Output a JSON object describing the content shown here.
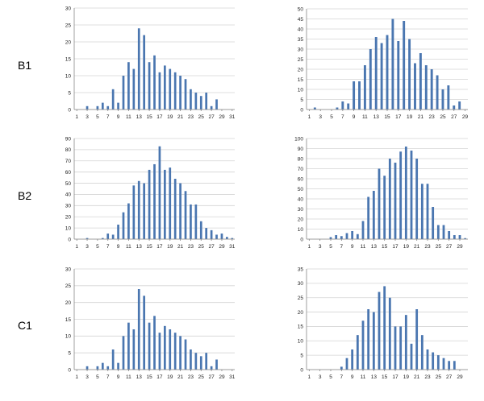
{
  "rows": [
    "B1",
    "B2",
    "C1"
  ],
  "chart_data": [
    {
      "type": "bar",
      "row": "B1",
      "ylim": [
        0,
        30
      ],
      "yticks": [
        0,
        5,
        10,
        15,
        20,
        25,
        30
      ],
      "categories": [
        1,
        2,
        3,
        4,
        5,
        6,
        7,
        8,
        9,
        10,
        11,
        12,
        13,
        14,
        15,
        16,
        17,
        18,
        19,
        20,
        21,
        22,
        23,
        24,
        25,
        26,
        27,
        28,
        29,
        30,
        31
      ],
      "xtick_labels": [
        "1",
        "3",
        "5",
        "7",
        "9",
        "11",
        "13",
        "15",
        "17",
        "19",
        "21",
        "23",
        "25",
        "27",
        "29",
        "31"
      ],
      "values": [
        0,
        0,
        1,
        0,
        1,
        2,
        1,
        6,
        2,
        10,
        14,
        12,
        24,
        22,
        14,
        16,
        11,
        13,
        12,
        11,
        10,
        9,
        6,
        5,
        4,
        5,
        1,
        3,
        0,
        0,
        0
      ],
      "color": "#4a76b0"
    },
    {
      "type": "bar",
      "row": "B1",
      "ylim": [
        0,
        50
      ],
      "yticks": [
        0,
        5,
        10,
        15,
        20,
        25,
        30,
        35,
        40,
        45,
        50
      ],
      "categories": [
        1,
        2,
        3,
        4,
        5,
        6,
        7,
        8,
        9,
        10,
        11,
        12,
        13,
        14,
        15,
        16,
        17,
        18,
        19,
        20,
        21,
        22,
        23,
        24,
        25,
        26,
        27,
        28,
        29
      ],
      "xtick_labels": [
        "1",
        "3",
        "5",
        "7",
        "9",
        "11",
        "13",
        "15",
        "17",
        "19",
        "21",
        "23",
        "25",
        "27",
        "29"
      ],
      "values": [
        0,
        1,
        0,
        0,
        0,
        1,
        4,
        3,
        14,
        14,
        22,
        30,
        36,
        33,
        37,
        45,
        34,
        44,
        35,
        23,
        28,
        22,
        20,
        17,
        10,
        12,
        2,
        4,
        0
      ],
      "color": "#4a76b0"
    },
    {
      "type": "bar",
      "row": "B2",
      "ylim": [
        0,
        90
      ],
      "yticks": [
        0,
        10,
        20,
        30,
        40,
        50,
        60,
        70,
        80,
        90
      ],
      "categories": [
        1,
        2,
        3,
        4,
        5,
        6,
        7,
        8,
        9,
        10,
        11,
        12,
        13,
        14,
        15,
        16,
        17,
        18,
        19,
        20,
        21,
        22,
        23,
        24,
        25,
        26,
        27,
        28,
        29,
        30,
        31
      ],
      "xtick_labels": [
        "1",
        "3",
        "5",
        "7",
        "9",
        "11",
        "13",
        "15",
        "17",
        "19",
        "21",
        "23",
        "25",
        "27",
        "29",
        "31"
      ],
      "values": [
        0,
        0,
        1,
        0,
        0,
        1,
        5,
        4,
        13,
        24,
        32,
        48,
        52,
        50,
        62,
        67,
        83,
        62,
        64,
        54,
        50,
        43,
        31,
        31,
        16,
        10,
        8,
        4,
        5,
        2,
        1
      ],
      "color": "#4a76b0"
    },
    {
      "type": "bar",
      "row": "B2",
      "ylim": [
        0,
        100
      ],
      "yticks": [
        0,
        10,
        20,
        30,
        40,
        50,
        60,
        70,
        80,
        90,
        100
      ],
      "categories": [
        1,
        2,
        3,
        4,
        5,
        6,
        7,
        8,
        9,
        10,
        11,
        12,
        13,
        14,
        15,
        16,
        17,
        18,
        19,
        20,
        21,
        22,
        23,
        24,
        25,
        26,
        27,
        28,
        29,
        30
      ],
      "xtick_labels": [
        "1",
        "3",
        "5",
        "7",
        "9",
        "11",
        "13",
        "15",
        "17",
        "19",
        "21",
        "23",
        "25",
        "27",
        "29"
      ],
      "values": [
        0,
        0,
        0,
        0,
        2,
        4,
        3,
        6,
        8,
        5,
        18,
        42,
        48,
        70,
        63,
        80,
        76,
        87,
        92,
        88,
        80,
        55,
        55,
        32,
        14,
        14,
        8,
        4,
        4,
        1
      ],
      "color": "#4a76b0"
    },
    {
      "type": "bar",
      "row": "C1",
      "ylim": [
        0,
        30
      ],
      "yticks": [
        0,
        5,
        10,
        15,
        20,
        25,
        30
      ],
      "categories": [
        1,
        2,
        3,
        4,
        5,
        6,
        7,
        8,
        9,
        10,
        11,
        12,
        13,
        14,
        15,
        16,
        17,
        18,
        19,
        20,
        21,
        22,
        23,
        24,
        25,
        26,
        27,
        28,
        29,
        30,
        31
      ],
      "xtick_labels": [
        "1",
        "3",
        "5",
        "7",
        "9",
        "11",
        "13",
        "15",
        "17",
        "19",
        "21",
        "23",
        "25",
        "27",
        "29",
        "31"
      ],
      "values": [
        0,
        0,
        1,
        0,
        1,
        2,
        1,
        6,
        2,
        10,
        14,
        12,
        24,
        22,
        14,
        16,
        11,
        13,
        12,
        11,
        10,
        9,
        6,
        5,
        4,
        5,
        1,
        3,
        0,
        0,
        0
      ],
      "color": "#4a76b0"
    },
    {
      "type": "bar",
      "row": "C1",
      "ylim": [
        0,
        35
      ],
      "yticks": [
        0,
        5,
        10,
        15,
        20,
        25,
        30,
        35
      ],
      "categories": [
        1,
        2,
        3,
        4,
        5,
        6,
        7,
        8,
        9,
        10,
        11,
        12,
        13,
        14,
        15,
        16,
        17,
        18,
        19,
        20,
        21,
        22,
        23,
        24,
        25,
        26,
        27,
        28,
        29,
        30
      ],
      "xtick_labels": [
        "1",
        "3",
        "5",
        "7",
        "9",
        "11",
        "13",
        "15",
        "17",
        "19",
        "21",
        "23",
        "25",
        "27",
        "29"
      ],
      "values": [
        0,
        0,
        0,
        0,
        0,
        0,
        1,
        4,
        7,
        12,
        17,
        21,
        20,
        27,
        29,
        25,
        15,
        15,
        19,
        9,
        21,
        12,
        7,
        6,
        5,
        4,
        3,
        3,
        0,
        0
      ],
      "color": "#4a76b0"
    }
  ]
}
